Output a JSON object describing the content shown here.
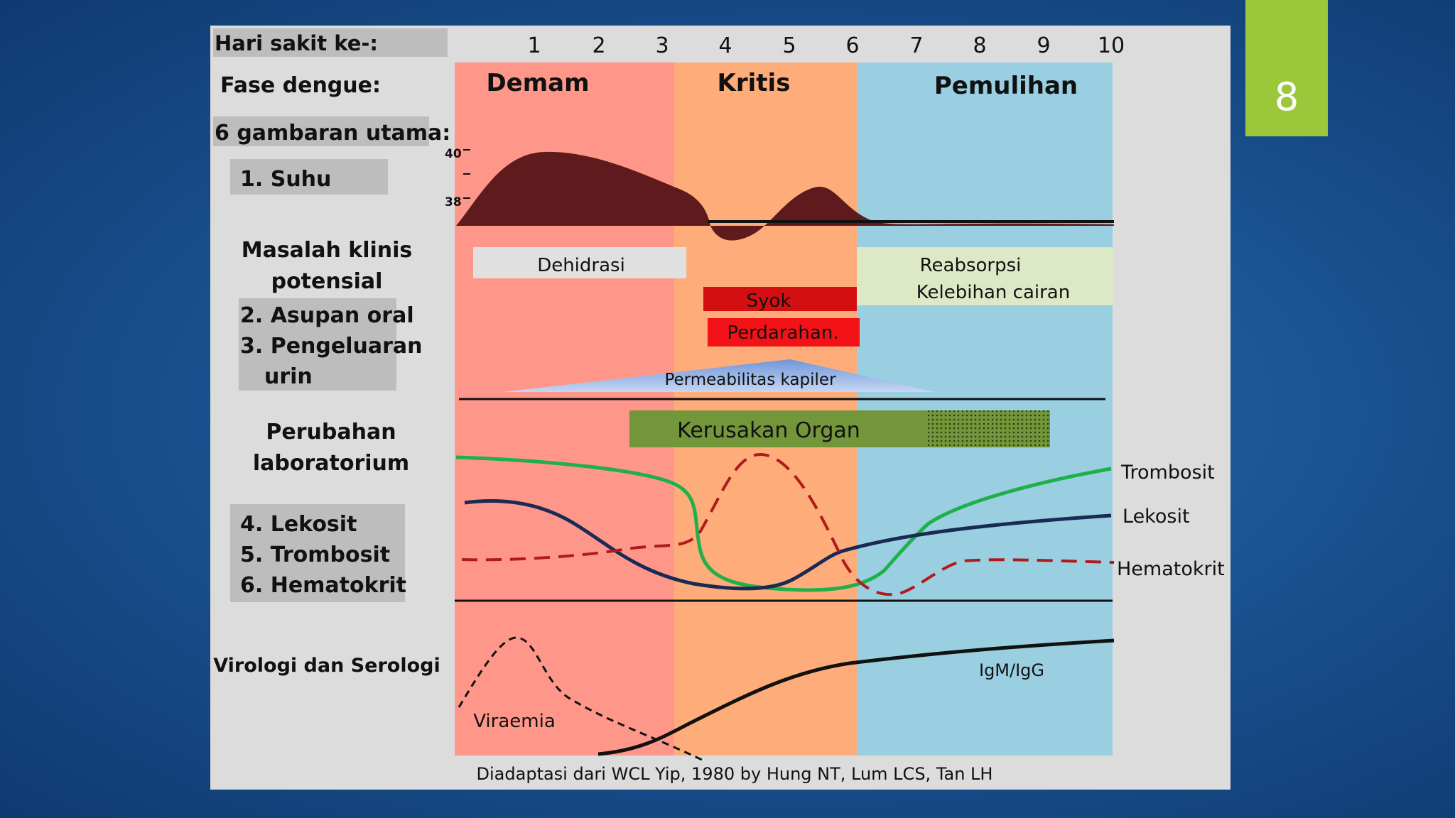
{
  "slide_number": "8",
  "header": {
    "day_label": "Hari sakit ke-:",
    "days": [
      "1",
      "2",
      "3",
      "4",
      "5",
      "6",
      "7",
      "8",
      "9",
      "10"
    ]
  },
  "rows": {
    "phase_label": "Fase dengue:",
    "main_features_label": "6 gambaran utama:",
    "temperature_label": "1. Suhu",
    "clinical_label": "Masalah klinis potensial",
    "clinical_items": [
      "2. Asupan oral",
      "3. Pengeluaran",
      "urin"
    ],
    "lab_label": "Perubahan laboratorium",
    "lab_items": [
      "4. Lekosit",
      "5. Trombosit",
      "6. Hematokrit"
    ],
    "virology_label": "Virologi dan Serologi"
  },
  "phases": [
    {
      "name": "Demam",
      "color": "#fe978a"
    },
    {
      "name": "Kritis",
      "color": "#fdac7a"
    },
    {
      "name": "Pemulihan",
      "color": "#99cfe0"
    }
  ],
  "temperature_ticks": [
    "40",
    "38"
  ],
  "clinical_problems": {
    "dehydration": "Dehidrasi",
    "shock": "Syok",
    "bleeding": "Perdarahan.",
    "reabsorption_line1": "Reabsorpsi",
    "reabsorption_line2": "Kelebihan cairan",
    "capillary": "Permeabilitas kapiler"
  },
  "lab": {
    "organ_damage": "Kerusakan Organ",
    "platelet": "Trombosit",
    "leukocyte": "Lekosit",
    "hematocrit": "Hematokrit",
    "colors": {
      "platelet": "#1fb04a",
      "leukocyte": "#1a2a55",
      "hematocrit": "#b01a1a",
      "organ": "#73963a"
    }
  },
  "virology": {
    "viremia": "Viraemia",
    "antibody": "IgM/IgG"
  },
  "caption": "Diadaptasi dari WCL Yip, 1980 by Hung NT, Lum LCS, Tan LH"
}
